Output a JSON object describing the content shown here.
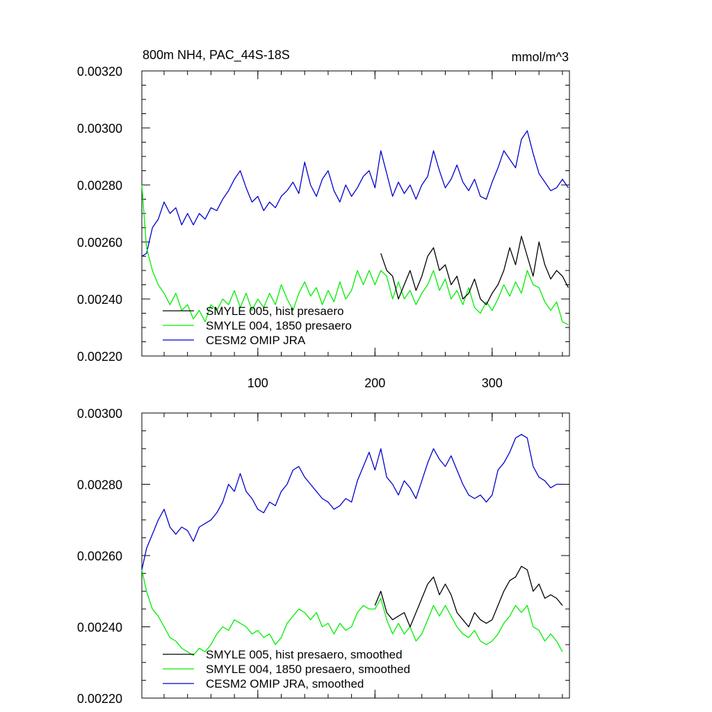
{
  "chart_data": [
    {
      "type": "line",
      "title": "800m NH4, PAC_44S-18S",
      "units": "mmol/m^3",
      "xlim": [
        1,
        366
      ],
      "ylim": [
        0.0022,
        0.0032
      ],
      "xticks": [
        {
          "value": 100,
          "label": "100"
        },
        {
          "value": 200,
          "label": "200"
        },
        {
          "value": 300,
          "label": "300"
        }
      ],
      "yticks": [
        {
          "value": 0.0022,
          "label": "0.00220"
        },
        {
          "value": 0.0024,
          "label": "0.00240"
        },
        {
          "value": 0.0026,
          "label": "0.00260"
        },
        {
          "value": 0.0028,
          "label": "0.00280"
        },
        {
          "value": 0.003,
          "label": "0.00300"
        },
        {
          "value": 0.0032,
          "label": "0.00320"
        }
      ],
      "legend_position": "bottom-left",
      "series": [
        {
          "name": "SMYLE 005, hist presaero",
          "color": "#000000",
          "x": [
            205,
            210,
            215,
            220,
            225,
            230,
            235,
            240,
            245,
            250,
            255,
            260,
            265,
            270,
            275,
            280,
            285,
            290,
            295,
            300,
            305,
            310,
            315,
            320,
            325,
            330,
            335,
            340,
            345,
            350,
            355,
            360,
            365
          ],
          "y": [
            0.00256,
            0.0025,
            0.00248,
            0.0024,
            0.00245,
            0.0025,
            0.00243,
            0.00248,
            0.00255,
            0.00258,
            0.0025,
            0.00252,
            0.00245,
            0.00248,
            0.0024,
            0.00242,
            0.00247,
            0.0024,
            0.00238,
            0.00242,
            0.00245,
            0.0025,
            0.00258,
            0.00252,
            0.00262,
            0.00255,
            0.00248,
            0.0026,
            0.00252,
            0.00247,
            0.0025,
            0.00248,
            0.00244
          ]
        },
        {
          "name": "SMYLE 004, 1850 presaero",
          "color": "#00ee00",
          "x": [
            1,
            5,
            10,
            15,
            20,
            25,
            30,
            35,
            40,
            45,
            50,
            55,
            60,
            65,
            70,
            75,
            80,
            85,
            90,
            95,
            100,
            105,
            110,
            115,
            120,
            125,
            130,
            135,
            140,
            145,
            150,
            155,
            160,
            165,
            170,
            175,
            180,
            185,
            190,
            195,
            200,
            205,
            210,
            215,
            220,
            225,
            230,
            235,
            240,
            245,
            250,
            255,
            260,
            265,
            270,
            275,
            280,
            285,
            290,
            295,
            300,
            305,
            310,
            315,
            320,
            325,
            330,
            335,
            340,
            345,
            350,
            355,
            360,
            365
          ],
          "y": [
            0.0028,
            0.00258,
            0.0025,
            0.00245,
            0.00242,
            0.00238,
            0.00242,
            0.00236,
            0.00238,
            0.00233,
            0.00236,
            0.00232,
            0.00238,
            0.00236,
            0.0024,
            0.00238,
            0.00243,
            0.00237,
            0.00242,
            0.00236,
            0.0024,
            0.00237,
            0.00242,
            0.00238,
            0.00245,
            0.0024,
            0.00236,
            0.00242,
            0.00246,
            0.00241,
            0.00244,
            0.00238,
            0.00243,
            0.00239,
            0.00246,
            0.0024,
            0.00243,
            0.0025,
            0.00245,
            0.0025,
            0.00245,
            0.0025,
            0.00248,
            0.0024,
            0.00246,
            0.0024,
            0.00243,
            0.00238,
            0.00242,
            0.00245,
            0.0025,
            0.00243,
            0.00247,
            0.0024,
            0.00243,
            0.00238,
            0.00244,
            0.00237,
            0.00235,
            0.00239,
            0.00236,
            0.0024,
            0.00245,
            0.00241,
            0.00246,
            0.00242,
            0.0025,
            0.00245,
            0.00244,
            0.00239,
            0.00236,
            0.00239,
            0.00232,
            0.00231
          ]
        },
        {
          "name": "CESM2 OMIP JRA",
          "color": "#0000cc",
          "x": [
            1,
            5,
            10,
            15,
            20,
            25,
            30,
            35,
            40,
            45,
            50,
            55,
            60,
            65,
            70,
            75,
            80,
            85,
            90,
            95,
            100,
            105,
            110,
            115,
            120,
            125,
            130,
            135,
            140,
            145,
            150,
            155,
            160,
            165,
            170,
            175,
            180,
            185,
            190,
            195,
            200,
            205,
            210,
            215,
            220,
            225,
            230,
            235,
            240,
            245,
            250,
            255,
            260,
            265,
            270,
            275,
            280,
            285,
            290,
            295,
            300,
            305,
            310,
            315,
            320,
            325,
            330,
            335,
            340,
            345,
            350,
            355,
            360,
            365
          ],
          "y": [
            0.00255,
            0.00256,
            0.00265,
            0.00268,
            0.00274,
            0.0027,
            0.00272,
            0.00266,
            0.0027,
            0.00266,
            0.0027,
            0.00268,
            0.00272,
            0.00271,
            0.00275,
            0.00278,
            0.00282,
            0.00285,
            0.00279,
            0.00274,
            0.00276,
            0.00271,
            0.00274,
            0.00272,
            0.00276,
            0.00278,
            0.00281,
            0.00277,
            0.00288,
            0.0028,
            0.00276,
            0.00282,
            0.00285,
            0.00278,
            0.00274,
            0.0028,
            0.00276,
            0.00279,
            0.00283,
            0.00285,
            0.00279,
            0.00292,
            0.00284,
            0.00276,
            0.00281,
            0.00277,
            0.0028,
            0.00275,
            0.0028,
            0.00283,
            0.00292,
            0.00285,
            0.00279,
            0.00282,
            0.00287,
            0.00281,
            0.00278,
            0.00282,
            0.00276,
            0.00275,
            0.00281,
            0.00286,
            0.00292,
            0.00289,
            0.00286,
            0.00296,
            0.00299,
            0.00291,
            0.00284,
            0.00281,
            0.00278,
            0.00279,
            0.00282,
            0.00279
          ]
        }
      ]
    },
    {
      "type": "line",
      "xlim": [
        1,
        366
      ],
      "ylim": [
        0.0022,
        0.003
      ],
      "xticks": [
        {
          "value": 100,
          "label": ""
        },
        {
          "value": 200,
          "label": ""
        },
        {
          "value": 300,
          "label": ""
        }
      ],
      "yticks": [
        {
          "value": 0.0022,
          "label": "0.00220"
        },
        {
          "value": 0.0024,
          "label": "0.00240"
        },
        {
          "value": 0.0026,
          "label": "0.00260"
        },
        {
          "value": 0.0028,
          "label": "0.00280"
        },
        {
          "value": 0.003,
          "label": "0.00300"
        }
      ],
      "legend_position": "bottom-left",
      "series": [
        {
          "name": "SMYLE 005, hist presaero, smoothed",
          "color": "#000000",
          "x": [
            200,
            205,
            210,
            215,
            220,
            225,
            230,
            235,
            240,
            245,
            250,
            255,
            260,
            265,
            270,
            275,
            280,
            285,
            290,
            295,
            300,
            305,
            310,
            315,
            320,
            325,
            330,
            335,
            340,
            345,
            350,
            355,
            360
          ],
          "y": [
            0.00246,
            0.0025,
            0.00244,
            0.00242,
            0.00243,
            0.00244,
            0.0024,
            0.00244,
            0.00248,
            0.00252,
            0.00254,
            0.00249,
            0.00252,
            0.00249,
            0.00244,
            0.00242,
            0.0024,
            0.00244,
            0.00242,
            0.00241,
            0.00242,
            0.00246,
            0.0025,
            0.00253,
            0.00254,
            0.00257,
            0.00256,
            0.0025,
            0.00252,
            0.00248,
            0.00249,
            0.00248,
            0.00246
          ]
        },
        {
          "name": "SMYLE 004, 1850 presaero, smoothed",
          "color": "#00ee00",
          "x": [
            1,
            5,
            10,
            15,
            20,
            25,
            30,
            35,
            40,
            45,
            50,
            55,
            60,
            65,
            70,
            75,
            80,
            85,
            90,
            95,
            100,
            105,
            110,
            115,
            120,
            125,
            130,
            135,
            140,
            145,
            150,
            155,
            160,
            165,
            170,
            175,
            180,
            185,
            190,
            195,
            200,
            205,
            210,
            215,
            220,
            225,
            230,
            235,
            240,
            245,
            250,
            255,
            260,
            265,
            270,
            275,
            280,
            285,
            290,
            295,
            300,
            305,
            310,
            315,
            320,
            325,
            330,
            335,
            340,
            345,
            350,
            355,
            360
          ],
          "y": [
            0.00256,
            0.0025,
            0.00245,
            0.00243,
            0.0024,
            0.00237,
            0.00236,
            0.00234,
            0.00233,
            0.00232,
            0.00234,
            0.00233,
            0.00235,
            0.00238,
            0.0024,
            0.00239,
            0.00242,
            0.00241,
            0.0024,
            0.00238,
            0.00239,
            0.00237,
            0.00238,
            0.00235,
            0.00237,
            0.00241,
            0.00243,
            0.00245,
            0.00244,
            0.00242,
            0.00244,
            0.0024,
            0.00241,
            0.00238,
            0.00241,
            0.00239,
            0.0024,
            0.00244,
            0.00246,
            0.00245,
            0.00245,
            0.00248,
            0.00242,
            0.00238,
            0.00241,
            0.00238,
            0.0024,
            0.00236,
            0.00238,
            0.00242,
            0.00246,
            0.00243,
            0.00246,
            0.00243,
            0.0024,
            0.00238,
            0.00237,
            0.00239,
            0.00236,
            0.00235,
            0.00236,
            0.00238,
            0.00241,
            0.00243,
            0.00246,
            0.00244,
            0.00246,
            0.0024,
            0.00239,
            0.00236,
            0.00238,
            0.00236,
            0.00233
          ]
        },
        {
          "name": "CESM2 OMIP JRA, smoothed",
          "color": "#0000cc",
          "x": [
            1,
            5,
            10,
            15,
            20,
            25,
            30,
            35,
            40,
            45,
            50,
            55,
            60,
            65,
            70,
            75,
            80,
            85,
            90,
            95,
            100,
            105,
            110,
            115,
            120,
            125,
            130,
            135,
            140,
            145,
            150,
            155,
            160,
            165,
            170,
            175,
            180,
            185,
            190,
            195,
            200,
            205,
            210,
            215,
            220,
            225,
            230,
            235,
            240,
            245,
            250,
            255,
            260,
            265,
            270,
            275,
            280,
            285,
            290,
            295,
            300,
            305,
            310,
            315,
            320,
            325,
            330,
            335,
            340,
            345,
            350,
            355,
            360
          ],
          "y": [
            0.00256,
            0.00262,
            0.00266,
            0.0027,
            0.00273,
            0.00268,
            0.00266,
            0.00268,
            0.00267,
            0.00264,
            0.00268,
            0.00269,
            0.0027,
            0.00272,
            0.00275,
            0.0028,
            0.00278,
            0.00283,
            0.00278,
            0.00276,
            0.00273,
            0.00272,
            0.00275,
            0.00274,
            0.00278,
            0.0028,
            0.00284,
            0.00285,
            0.00282,
            0.0028,
            0.00278,
            0.00276,
            0.00275,
            0.00273,
            0.00274,
            0.00276,
            0.00275,
            0.00281,
            0.00285,
            0.00289,
            0.00284,
            0.0029,
            0.00282,
            0.0028,
            0.00277,
            0.00281,
            0.00279,
            0.00276,
            0.00281,
            0.00286,
            0.0029,
            0.00287,
            0.00285,
            0.00288,
            0.00284,
            0.0028,
            0.00277,
            0.00276,
            0.00277,
            0.00275,
            0.00277,
            0.00284,
            0.00286,
            0.00289,
            0.00293,
            0.00294,
            0.00293,
            0.00285,
            0.00282,
            0.00281,
            0.00279,
            0.0028,
            0.0028
          ]
        }
      ]
    }
  ]
}
